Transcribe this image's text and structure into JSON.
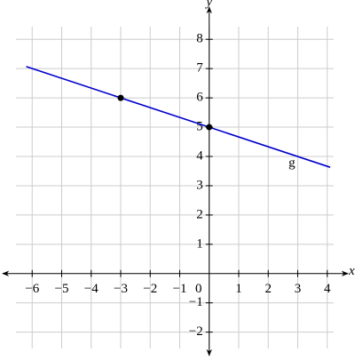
{
  "chart_data": {
    "type": "line",
    "x_label": "x",
    "y_label": "y",
    "xlim": [
      -7,
      4.7
    ],
    "ylim": [
      -2.8,
      9.1
    ],
    "xticks": [
      {
        "value": -6,
        "label": "−6"
      },
      {
        "value": -5,
        "label": "−5"
      },
      {
        "value": -4,
        "label": "−4"
      },
      {
        "value": -3,
        "label": "−3"
      },
      {
        "value": -2,
        "label": "−2"
      },
      {
        "value": -1,
        "label": "−1"
      },
      0,
      1,
      2,
      3,
      4
    ],
    "yticks": [
      {
        "value": -2,
        "label": "−2"
      },
      {
        "value": -1,
        "label": "−1"
      },
      1,
      2,
      3,
      4,
      5,
      6,
      7,
      8
    ],
    "grid": true,
    "series": [
      {
        "name": "g",
        "color": "#0000cc",
        "x": [
          -6.2,
          4.1
        ],
        "values": [
          7.07,
          3.63
        ]
      },
      {
        "color": "#000000",
        "x": [
          -3,
          0
        ],
        "values": [
          6,
          5
        ],
        "markers": true
      }
    ],
    "annotations": [
      {
        "text": "g",
        "x": 2.8,
        "y": 3.75
      }
    ]
  }
}
